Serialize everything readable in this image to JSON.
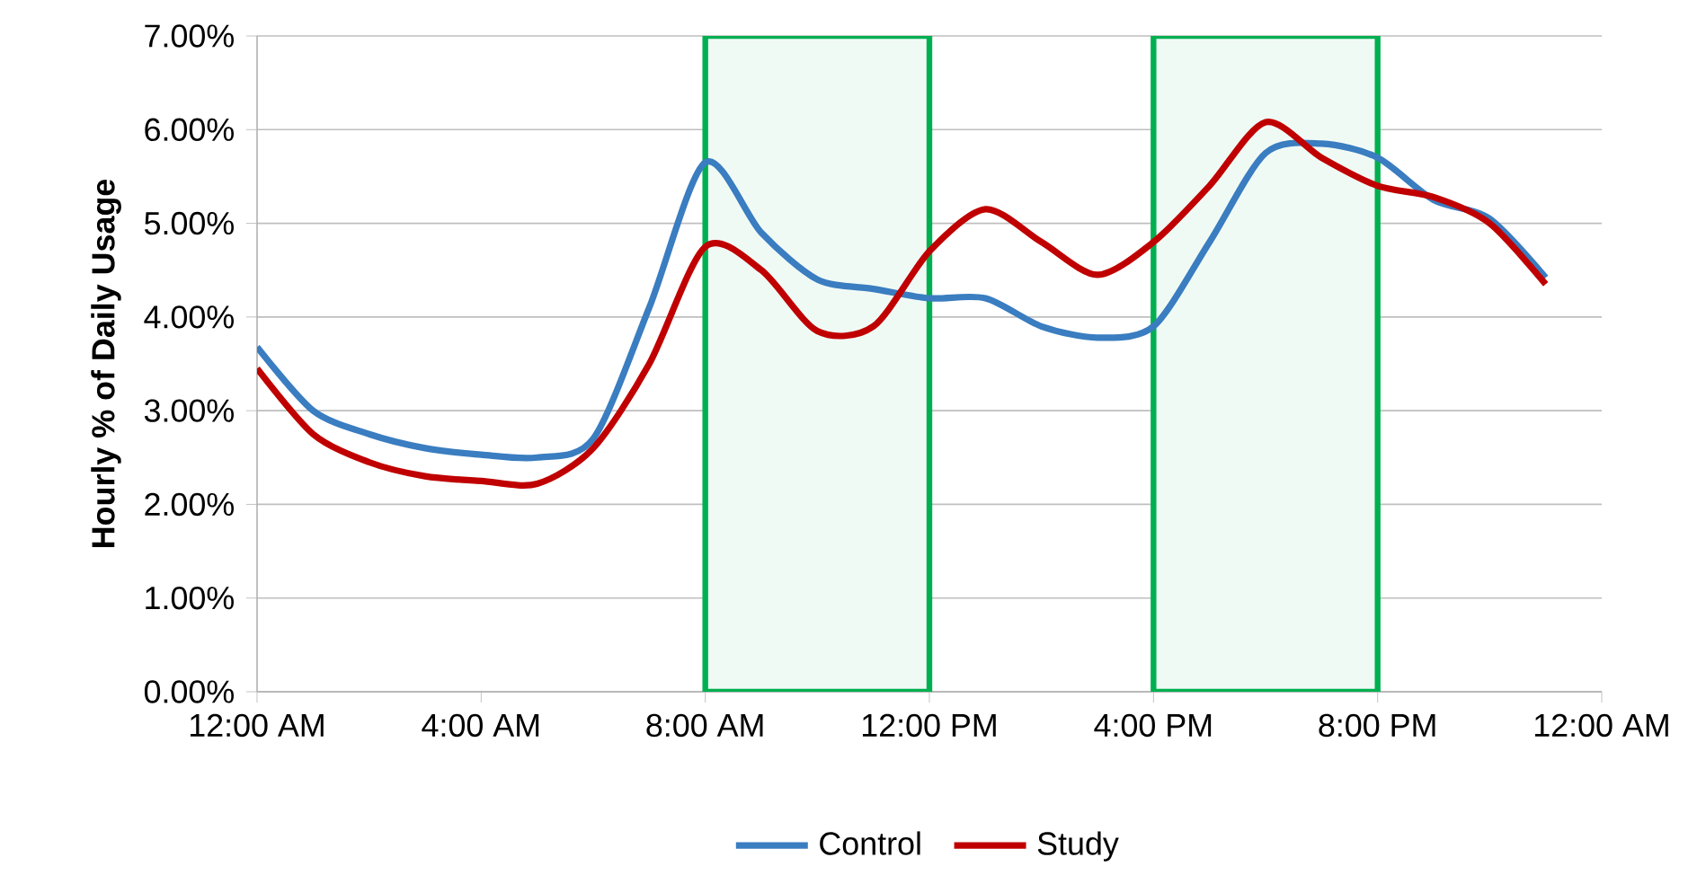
{
  "chart_data": {
    "type": "line",
    "ylabel": "Hourly % of Daily Usage",
    "x": [
      0,
      1,
      2,
      3,
      4,
      5,
      6,
      7,
      8,
      9,
      10,
      11,
      12,
      13,
      14,
      15,
      16,
      17,
      18,
      19,
      20,
      21,
      22,
      23
    ],
    "series": [
      {
        "name": "Control",
        "color": "#3a7dc0",
        "values": [
          3.68,
          3.0,
          2.75,
          2.6,
          2.53,
          2.5,
          2.7,
          4.1,
          5.65,
          4.9,
          4.4,
          4.3,
          4.2,
          4.2,
          3.9,
          3.78,
          3.9,
          4.8,
          5.75,
          5.85,
          5.7,
          5.25,
          5.05,
          4.42
        ]
      },
      {
        "name": "Study",
        "color": "#c00000",
        "values": [
          3.45,
          2.75,
          2.45,
          2.3,
          2.25,
          2.22,
          2.6,
          3.5,
          4.75,
          4.5,
          3.85,
          3.9,
          4.7,
          5.15,
          4.8,
          4.45,
          4.8,
          5.4,
          6.08,
          5.7,
          5.4,
          5.28,
          5.0,
          4.35
        ]
      }
    ],
    "xlim": [
      0,
      24
    ],
    "xticks": [
      {
        "value": 0,
        "label": "12:00 AM"
      },
      {
        "value": 4,
        "label": "4:00 AM"
      },
      {
        "value": 8,
        "label": "8:00 AM"
      },
      {
        "value": 12,
        "label": "12:00 PM"
      },
      {
        "value": 16,
        "label": "4:00 PM"
      },
      {
        "value": 20,
        "label": "8:00 PM"
      },
      {
        "value": 24,
        "label": "12:00 AM"
      }
    ],
    "ylim": [
      0,
      7
    ],
    "yticks": [
      {
        "value": 0,
        "label": "0.00%"
      },
      {
        "value": 1,
        "label": "1.00%"
      },
      {
        "value": 2,
        "label": "2.00%"
      },
      {
        "value": 3,
        "label": "3.00%"
      },
      {
        "value": 4,
        "label": "4.00%"
      },
      {
        "value": 5,
        "label": "5.00%"
      },
      {
        "value": 6,
        "label": "6.00%"
      },
      {
        "value": 7,
        "label": "7.00%"
      }
    ],
    "bands": [
      {
        "axis": "x",
        "from": 8,
        "to": 12
      },
      {
        "axis": "x",
        "from": 16,
        "to": 20
      }
    ],
    "grid": "y",
    "legend": "bottom",
    "line_style": "solid",
    "marker": "none"
  }
}
